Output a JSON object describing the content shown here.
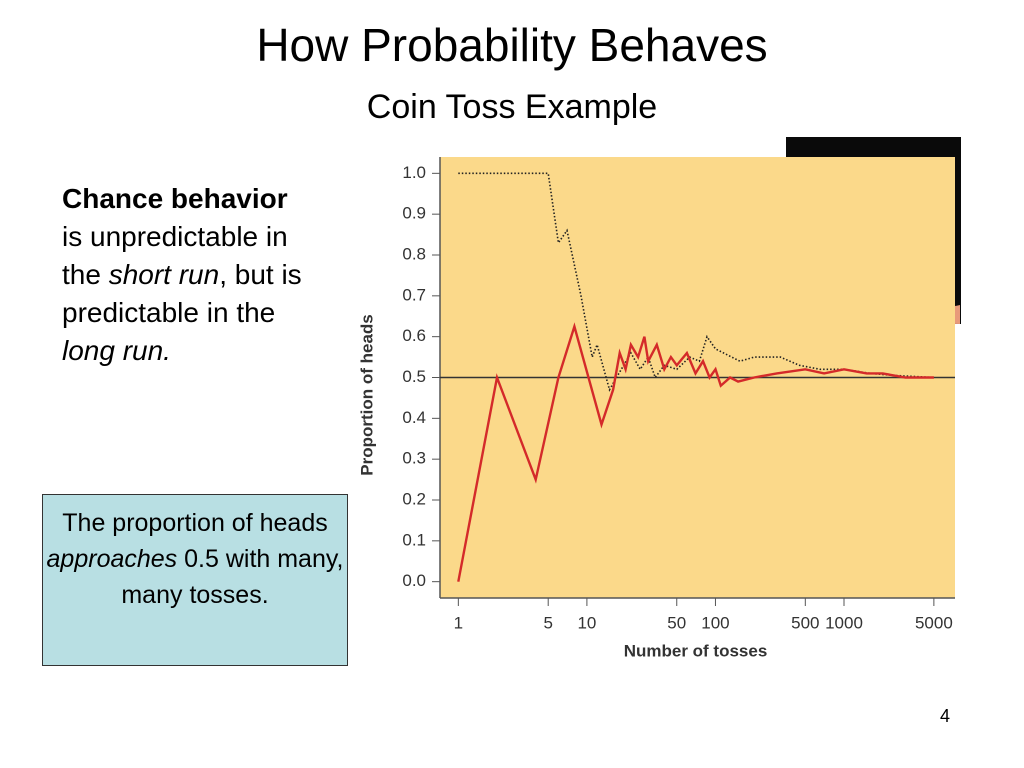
{
  "title": "How Probability Behaves",
  "subtitle": "Coin Toss Example",
  "body": [
    {
      "text": "Chance behavior",
      "style": "bold"
    },
    {
      "text": " is unpredictable in the ",
      "style": "normal"
    },
    {
      "text": "short run",
      "style": "italic"
    },
    {
      "text": ", but is predictable in the ",
      "style": "normal"
    },
    {
      "text": "long run.",
      "style": "italic"
    }
  ],
  "note": [
    {
      "text": "The proportion of heads ",
      "style": "normal"
    },
    {
      "text": "approaches",
      "style": "italic"
    },
    {
      "text": " 0.5 with many, many tosses.",
      "style": "normal"
    }
  ],
  "page_number": "4",
  "chart_data": {
    "type": "line",
    "xlabel": "Number of tosses",
    "ylabel": "Proportion of heads",
    "xscale": "log",
    "xlim": [
      0.72,
      7300
    ],
    "ylim": [
      -0.04,
      1.04
    ],
    "xticks": [
      1,
      5,
      10,
      50,
      100,
      500,
      1000,
      5000
    ],
    "yticks": [
      {
        "value": 0,
        "label": "0.0"
      },
      0.1,
      0.2,
      0.3,
      0.4,
      0.5,
      0.6,
      0.7,
      0.8,
      0.9,
      {
        "value": 1,
        "label": "1.0"
      }
    ],
    "reference_line": 0.5,
    "background": "#fbd98a",
    "series": [
      {
        "color": "#d42a2a",
        "style": "solid",
        "x": [
          1,
          2,
          4,
          6,
          8,
          13,
          16,
          18,
          20,
          22,
          25,
          28,
          30,
          35,
          40,
          45,
          50,
          60,
          70,
          80,
          90,
          100,
          110,
          130,
          150,
          200,
          300,
          500,
          700,
          1000,
          1500,
          2000,
          3000,
          5000
        ],
        "values": [
          0,
          0.5,
          0.25,
          0.5,
          0.625,
          0.385,
          0.47,
          0.56,
          0.52,
          0.58,
          0.55,
          0.6,
          0.54,
          0.58,
          0.52,
          0.55,
          0.53,
          0.56,
          0.51,
          0.54,
          0.5,
          0.52,
          0.48,
          0.5,
          0.49,
          0.5,
          0.51,
          0.52,
          0.51,
          0.52,
          0.51,
          0.51,
          0.5,
          0.5
        ]
      },
      {
        "color": "#222222",
        "style": "dotted",
        "x": [
          1,
          5,
          6,
          7,
          9,
          11,
          12,
          15,
          17,
          22,
          26,
          30,
          34,
          40,
          50,
          63,
          75,
          86,
          100,
          155,
          200,
          320,
          450,
          650,
          1000,
          1600,
          2500,
          5000
        ],
        "values": [
          1,
          1,
          0.83,
          0.86,
          0.7,
          0.55,
          0.58,
          0.47,
          0.5,
          0.56,
          0.52,
          0.55,
          0.5,
          0.53,
          0.52,
          0.55,
          0.54,
          0.6,
          0.57,
          0.54,
          0.55,
          0.55,
          0.53,
          0.52,
          0.52,
          0.51,
          0.505,
          0.5
        ]
      }
    ]
  }
}
